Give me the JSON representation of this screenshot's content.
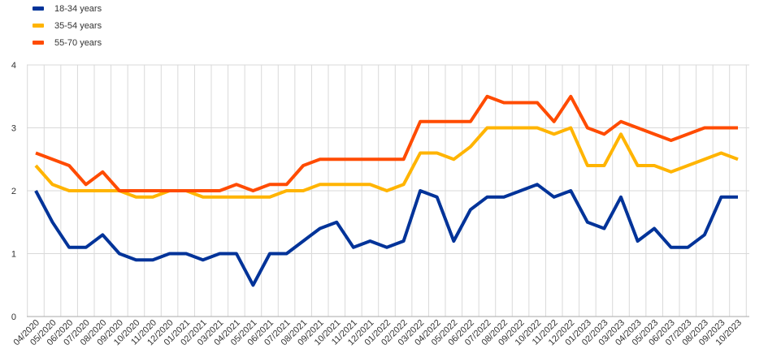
{
  "chart_data": {
    "type": "line",
    "title": "",
    "xlabel": "",
    "ylabel": "",
    "ylim": [
      0,
      4
    ],
    "yticks": [
      "0",
      "1",
      "2",
      "3",
      "4"
    ],
    "grid": true,
    "legend_position": "top-left",
    "categories": [
      "04/2020",
      "05/2020",
      "06/2020",
      "07/2020",
      "08/2020",
      "09/2020",
      "10/2020",
      "11/2020",
      "12/2020",
      "01/2021",
      "02/2021",
      "03/2021",
      "04/2021",
      "05/2021",
      "06/2021",
      "07/2021",
      "08/2021",
      "09/2021",
      "10/2021",
      "11/2021",
      "12/2021",
      "01/2022",
      "02/2022",
      "03/2022",
      "04/2022",
      "05/2022",
      "06/2022",
      "07/2022",
      "08/2022",
      "09/2022",
      "10/2022",
      "11/2022",
      "12/2022",
      "01/2023",
      "02/2023",
      "03/2023",
      "04/2023",
      "05/2023",
      "06/2023",
      "07/2023",
      "08/2023",
      "09/2023",
      "10/2023"
    ],
    "series": [
      {
        "name": "18-34 years",
        "color": "#003399",
        "values": [
          2.0,
          1.5,
          1.1,
          1.1,
          1.3,
          1.0,
          0.9,
          0.9,
          1.0,
          1.0,
          0.9,
          1.0,
          1.0,
          0.5,
          1.0,
          1.0,
          1.2,
          1.4,
          1.5,
          1.1,
          1.2,
          1.1,
          1.2,
          2.0,
          1.9,
          1.2,
          1.7,
          1.9,
          1.9,
          2.0,
          2.1,
          1.9,
          2.0,
          1.5,
          1.4,
          1.9,
          1.2,
          1.4,
          1.1,
          1.1,
          1.3,
          1.9,
          1.9
        ]
      },
      {
        "name": "35-54 years",
        "color": "#FFB400",
        "values": [
          2.4,
          2.1,
          2.0,
          2.0,
          2.0,
          2.0,
          1.9,
          1.9,
          2.0,
          2.0,
          1.9,
          1.9,
          1.9,
          1.9,
          1.9,
          2.0,
          2.0,
          2.1,
          2.1,
          2.1,
          2.1,
          2.0,
          2.1,
          2.6,
          2.6,
          2.5,
          2.7,
          3.0,
          3.0,
          3.0,
          3.0,
          2.9,
          3.0,
          2.4,
          2.4,
          2.9,
          2.4,
          2.4,
          2.3,
          2.4,
          2.5,
          2.6,
          2.5
        ]
      },
      {
        "name": "55-70 years",
        "color": "#FF4B00",
        "values": [
          2.6,
          2.5,
          2.4,
          2.1,
          2.3,
          2.0,
          2.0,
          2.0,
          2.0,
          2.0,
          2.0,
          2.0,
          2.1,
          2.0,
          2.1,
          2.1,
          2.4,
          2.5,
          2.5,
          2.5,
          2.5,
          2.5,
          2.5,
          3.1,
          3.1,
          3.1,
          3.1,
          3.5,
          3.4,
          3.4,
          3.4,
          3.1,
          3.5,
          3.0,
          2.9,
          3.1,
          3.0,
          2.9,
          2.8,
          2.9,
          3.0,
          3.0,
          3.0
        ]
      }
    ]
  }
}
